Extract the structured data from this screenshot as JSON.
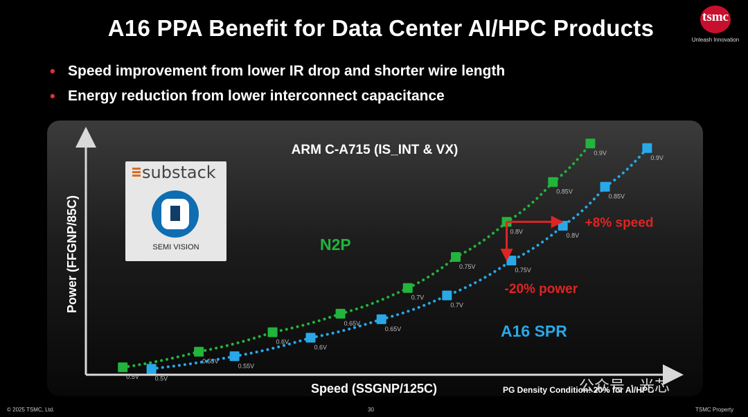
{
  "slide": {
    "title": "A16 PPA Benefit for Data Center AI/HPC Products",
    "bullets": [
      "Speed improvement from lower IR drop and shorter wire length",
      "Energy reduction from lower interconnect capacitance"
    ],
    "logo": {
      "text": "tsmc",
      "tagline": "Unleash Innovation"
    },
    "watermark": {
      "brand": "substack",
      "subtitle": "SEMI VISION"
    },
    "footer": {
      "copyright": "© 2025 TSMC, Ltd.",
      "page_number": "30",
      "property": "TSMC Property",
      "note": "PG Density Condition: 20% for AI/HPC",
      "wechat": "公众号 · 光芯"
    },
    "colors": {
      "background": "#000000",
      "n2p": "#22b43c",
      "a16": "#29a8e8",
      "annotation": "#e02424"
    }
  },
  "chart_data": {
    "type": "scatter",
    "title": "ARM C-A715 (IS_INT & VX)",
    "xlabel": "Speed (SSGNP/125C)",
    "ylabel": "Power (FFGNP/85C)",
    "xlim": [
      0,
      100
    ],
    "ylim": [
      0,
      100
    ],
    "grid": false,
    "axis_ticks": false,
    "series": [
      {
        "name": "N2P",
        "color": "#22b43c",
        "labels": [
          "0.5V",
          "0.55V",
          "0.6V",
          "0.65V",
          "0.7V",
          "0.75V",
          "0.8V",
          "0.85V",
          "0.9V"
        ],
        "x": [
          6.3,
          19.3,
          31.9,
          43.5,
          55.0,
          63.2,
          71.9,
          79.8,
          86.2
        ],
        "y": [
          3.1,
          9.6,
          17.7,
          25.4,
          36.1,
          49.0,
          63.6,
          80.2,
          96.2
        ]
      },
      {
        "name": "A16 SPR",
        "color": "#29a8e8",
        "labels": [
          "0.5V",
          "0.55V",
          "0.6V",
          "0.65V",
          "0.7V",
          "0.75V",
          "0.8V",
          "0.85V",
          "0.9V"
        ],
        "x": [
          11.2,
          25.4,
          38.4,
          50.5,
          61.7,
          72.7,
          81.5,
          88.7,
          95.9
        ],
        "y": [
          2.5,
          7.7,
          15.4,
          23.1,
          33.0,
          47.5,
          62.0,
          78.2,
          94.3
        ]
      }
    ],
    "annotations": [
      {
        "text": "+8% speed",
        "type": "arrow-right",
        "from": [
          71.9,
          63.6
        ],
        "to": [
          81.5,
          63.6
        ]
      },
      {
        "text": "-20% power",
        "type": "arrow-down",
        "from": [
          71.9,
          63.6
        ],
        "to": [
          71.9,
          47.5
        ]
      }
    ]
  }
}
